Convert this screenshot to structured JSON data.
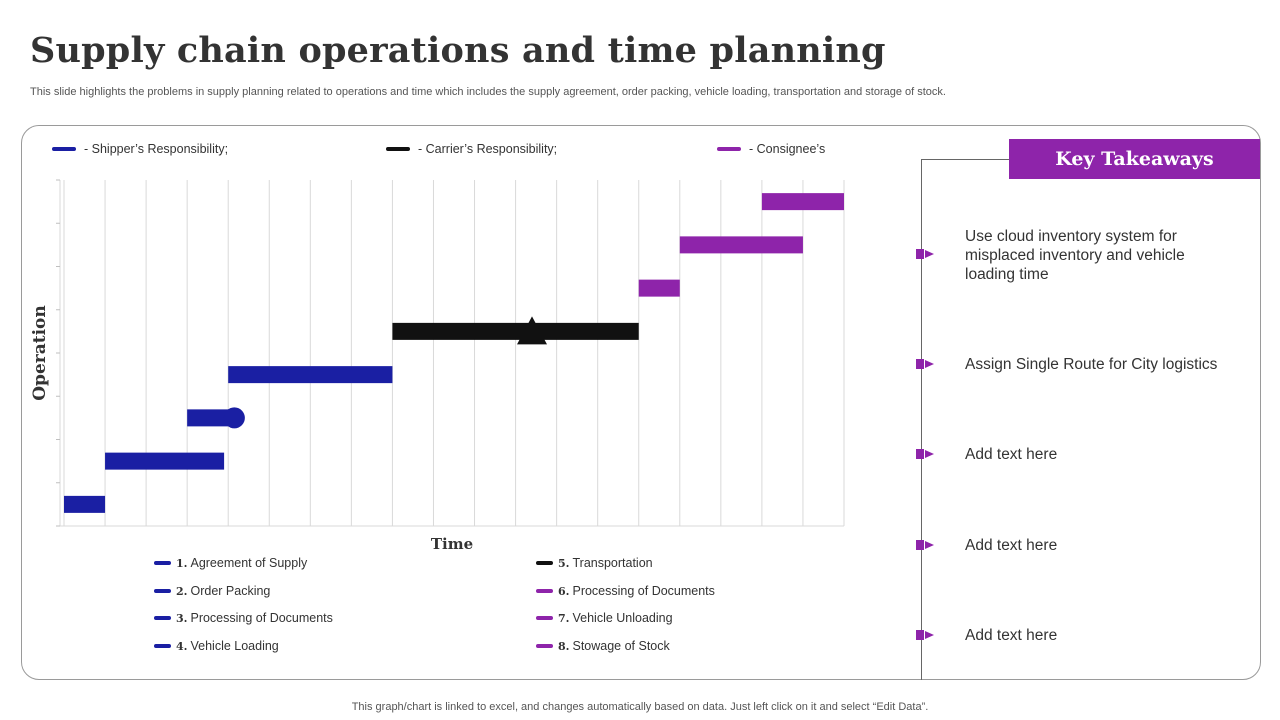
{
  "title": "Supply chain operations and time planning",
  "subtitle": "This slide highlights the problems in supply planning related to operations and time which includes the supply agreement, order packing, vehicle loading, transportation and storage of stock.",
  "footer": "This graph/chart is linked to excel,  and changes automatically based on data. Just left click on it and select “Edit Data”.",
  "colors": {
    "shipper": "#1a1fa3",
    "carrier": "#111111",
    "consignee": "#8e24aa",
    "grid": "#d9d9d9",
    "header_bg": "#8e24aa"
  },
  "top_legend": [
    {
      "label": "- Shipper’s  Responsibility;",
      "color": "#1a1fa3"
    },
    {
      "label": "- Carrier’s  Responsibility;",
      "color": "#111111"
    },
    {
      "label": "- Consignee’s",
      "color": "#8e24aa"
    }
  ],
  "chart_data": {
    "type": "gantt",
    "xlabel": "Time",
    "ylabel": "Operation",
    "xlim": [
      0,
      19
    ],
    "ylim": [
      0,
      8
    ],
    "grid": true,
    "tasks": [
      {
        "id": 1,
        "name": "Agreement  of Supply",
        "start": 0,
        "end": 1,
        "color": "#1a1fa3",
        "marker": ""
      },
      {
        "id": 2,
        "name": "Order  Packing",
        "start": 1,
        "end": 3.9,
        "color": "#1a1fa3",
        "marker": ""
      },
      {
        "id": 3,
        "name": "Processing of Documents",
        "start": 3,
        "end": 4.15,
        "color": "#1a1fa3",
        "marker": "circle"
      },
      {
        "id": 4,
        "name": "Vehicle Loading",
        "start": 4,
        "end": 8,
        "color": "#1a1fa3",
        "marker": ""
      },
      {
        "id": 5,
        "name": "Transportation",
        "start": 8,
        "end": 14,
        "color": "#111111",
        "marker": "triangle",
        "marker_at": 11.4
      },
      {
        "id": 6,
        "name": "Processing of Documents",
        "start": 14,
        "end": 15,
        "color": "#8e24aa",
        "marker": ""
      },
      {
        "id": 7,
        "name": "Vehicle Unloading",
        "start": 15,
        "end": 18,
        "color": "#8e24aa",
        "marker": ""
      },
      {
        "id": 8,
        "name": "Stowage of Stock",
        "start": 17,
        "end": 19,
        "color": "#8e24aa",
        "marker": ""
      }
    ]
  },
  "bottom_legend": [
    {
      "num": "1.",
      "label": "Agreement  of Supply",
      "color": "#1a1fa3"
    },
    {
      "num": "2.",
      "label": "Order  Packing",
      "color": "#1a1fa3"
    },
    {
      "num": "3.",
      "label": "Processing of Documents",
      "color": "#1a1fa3"
    },
    {
      "num": "4.",
      "label": "Vehicle Loading",
      "color": "#1a1fa3"
    },
    {
      "num": "5.",
      "label": "Transportation",
      "color": "#111111"
    },
    {
      "num": "6.",
      "label": "Processing of Documents",
      "color": "#8e24aa"
    },
    {
      "num": "7.",
      "label": "Vehicle Unloading",
      "color": "#8e24aa"
    },
    {
      "num": "8.",
      "label": "Stowage of Stock",
      "color": "#8e24aa"
    }
  ],
  "key_takeaways": {
    "title": "Key Takeaways",
    "items": [
      "Use cloud inventory  system for misplaced inventory  and vehicle loading time",
      "Assign Single Route for City logistics",
      "Add text here",
      "Add text here",
      "Add text here"
    ]
  }
}
